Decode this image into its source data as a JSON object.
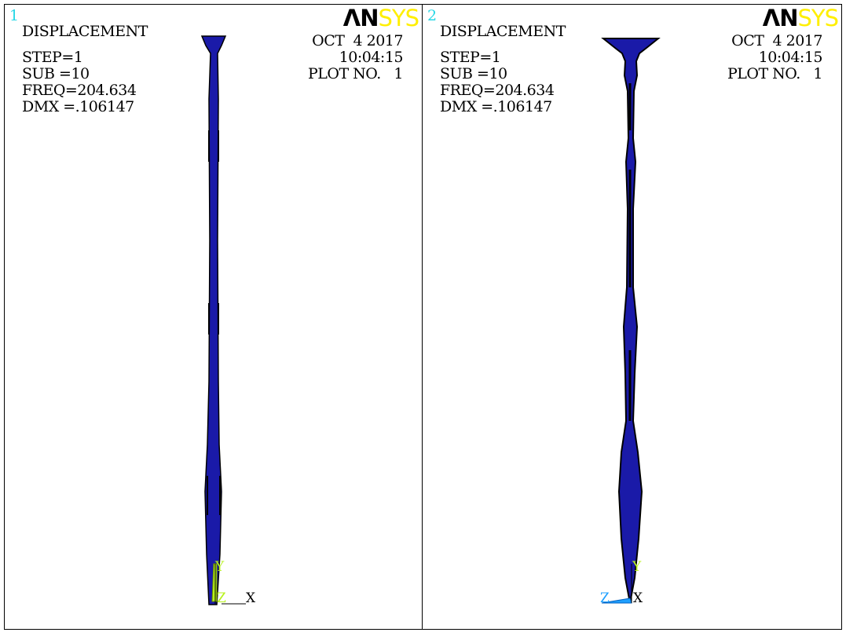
{
  "logo": {
    "part1": "ΛN",
    "part2": "SYS",
    "part2_color": "#ffef00"
  },
  "windows": [
    {
      "number": "1",
      "title": "DISPLACEMENT",
      "step": "STEP=1",
      "sub": "SUB =10",
      "freq": "FREQ=204.634",
      "dmx": "DMX =.106147",
      "date": "OCT  4 2017",
      "time": "10:04:15",
      "plot": "PLOT NO.   1",
      "triad": {
        "y": "Y",
        "z": "Z",
        "x": "X"
      }
    },
    {
      "number": "2",
      "title": "DISPLACEMENT",
      "step": "STEP=1",
      "sub": "SUB =10",
      "freq": "FREQ=204.634",
      "dmx": "DMX =.106147",
      "date": "OCT  4 2017",
      "time": "10:04:15",
      "plot": "PLOT NO.   1",
      "triad": {
        "y": "Y",
        "z": "Z",
        "x": "X"
      }
    }
  ],
  "colors": {
    "mesh_fill": "#1a1aa8",
    "mesh_line": "#000000",
    "window_number": "#28d7e6",
    "triad_y": "#b7f21b",
    "triad_z": "#1fa0ff"
  }
}
